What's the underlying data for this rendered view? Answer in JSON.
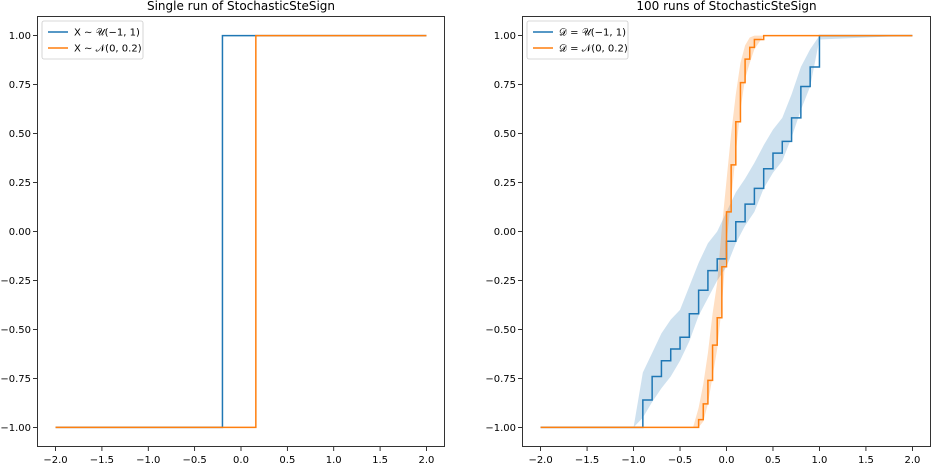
{
  "chart_data": [
    {
      "type": "line",
      "title": "Single run of StochasticSteSign",
      "xlabel": "",
      "ylabel": "",
      "xlim": [
        -2.2,
        2.2
      ],
      "ylim": [
        -1.1,
        1.1
      ],
      "xticks": [
        -2.0,
        -1.5,
        -1.0,
        -0.5,
        0.0,
        0.5,
        1.0,
        1.5,
        2.0
      ],
      "xtick_labels": [
        "−2.0",
        "−1.5",
        "−1.0",
        "−0.5",
        "0.0",
        "0.5",
        "1.0",
        "1.5",
        "2.0"
      ],
      "yticks": [
        -1.0,
        -0.75,
        -0.5,
        -0.25,
        0.0,
        0.25,
        0.5,
        0.75,
        1.0
      ],
      "ytick_labels": [
        "−1.00",
        "−0.75",
        "−0.50",
        "−0.25",
        "0.00",
        "0.25",
        "0.50",
        "0.75",
        "1.00"
      ],
      "grid": false,
      "legend_position": "top-left",
      "series": [
        {
          "name": "X ∼ 𝒰(−1, 1)",
          "color": "#1f77b4",
          "x": [
            -2.0,
            -0.2,
            -0.2,
            2.0
          ],
          "y": [
            -1.0,
            -1.0,
            1.0,
            1.0
          ]
        },
        {
          "name": "X ∼ 𝒩(0, 0.2)",
          "color": "#ff7f0e",
          "x": [
            -2.0,
            0.16,
            0.16,
            2.0
          ],
          "y": [
            -1.0,
            -1.0,
            1.0,
            1.0
          ]
        }
      ]
    },
    {
      "type": "line",
      "title": "100 runs of StochasticSteSign",
      "xlabel": "",
      "ylabel": "",
      "xlim": [
        -2.2,
        2.2
      ],
      "ylim": [
        -1.1,
        1.1
      ],
      "xticks": [
        -2.0,
        -1.5,
        -1.0,
        -0.5,
        0.0,
        0.5,
        1.0,
        1.5,
        2.0
      ],
      "xtick_labels": [
        "−2.0",
        "−1.5",
        "−1.0",
        "−0.5",
        "0.0",
        "0.5",
        "1.0",
        "1.5",
        "2.0"
      ],
      "yticks": [
        -1.0,
        -0.75,
        -0.5,
        -0.25,
        0.0,
        0.25,
        0.5,
        0.75,
        1.0
      ],
      "ytick_labels": [
        "−1.00",
        "−0.75",
        "−0.50",
        "−0.25",
        "0.00",
        "0.25",
        "0.50",
        "0.75",
        "1.00"
      ],
      "grid": false,
      "legend_position": "top-left",
      "series": [
        {
          "name": "𝒟 = 𝒰(−1, 1)",
          "color": "#1f77b4",
          "band_opacity": 0.22,
          "x": [
            -2.0,
            -1.0,
            -0.9,
            -0.8,
            -0.7,
            -0.6,
            -0.5,
            -0.4,
            -0.3,
            -0.2,
            -0.1,
            0.0,
            0.1,
            0.2,
            0.3,
            0.4,
            0.5,
            0.6,
            0.7,
            0.8,
            0.9,
            1.0,
            2.0
          ],
          "y": [
            -1.0,
            -1.0,
            -0.86,
            -0.74,
            -0.66,
            -0.6,
            -0.54,
            -0.42,
            -0.3,
            -0.2,
            -0.14,
            -0.05,
            0.05,
            0.14,
            0.22,
            0.32,
            0.4,
            0.46,
            0.58,
            0.74,
            0.84,
            1.0,
            1.0
          ],
          "lower": [
            -1.0,
            -1.0,
            -0.95,
            -0.87,
            -0.8,
            -0.74,
            -0.66,
            -0.56,
            -0.43,
            -0.34,
            -0.25,
            -0.18,
            -0.06,
            0.03,
            0.1,
            0.22,
            0.3,
            0.36,
            0.48,
            0.62,
            0.74,
            0.98,
            1.0
          ],
          "upper": [
            -1.0,
            -1.0,
            -0.72,
            -0.62,
            -0.52,
            -0.45,
            -0.4,
            -0.28,
            -0.16,
            -0.06,
            0.0,
            0.1,
            0.2,
            0.27,
            0.35,
            0.44,
            0.52,
            0.58,
            0.7,
            0.84,
            0.93,
            1.0,
            1.0
          ]
        },
        {
          "name": "𝒟 = 𝒩(0, 0.2)",
          "color": "#ff7f0e",
          "band_opacity": 0.25,
          "x": [
            -2.0,
            -0.36,
            -0.3,
            -0.25,
            -0.2,
            -0.15,
            -0.1,
            -0.05,
            0.0,
            0.05,
            0.1,
            0.15,
            0.2,
            0.25,
            0.3,
            0.4,
            2.0
          ],
          "y": [
            -1.0,
            -1.0,
            -0.96,
            -0.88,
            -0.76,
            -0.58,
            -0.44,
            -0.18,
            0.1,
            0.34,
            0.56,
            0.76,
            0.88,
            0.94,
            0.98,
            1.0,
            1.0
          ],
          "lower": [
            -1.0,
            -1.0,
            -1.0,
            -0.97,
            -0.88,
            -0.74,
            -0.6,
            -0.38,
            -0.06,
            0.16,
            0.4,
            0.62,
            0.78,
            0.86,
            0.93,
            1.0,
            1.0
          ],
          "upper": [
            -1.0,
            -1.0,
            -0.9,
            -0.78,
            -0.62,
            -0.42,
            -0.26,
            0.02,
            0.26,
            0.5,
            0.7,
            0.86,
            0.95,
            0.99,
            1.0,
            1.0,
            1.0
          ]
        }
      ]
    }
  ]
}
